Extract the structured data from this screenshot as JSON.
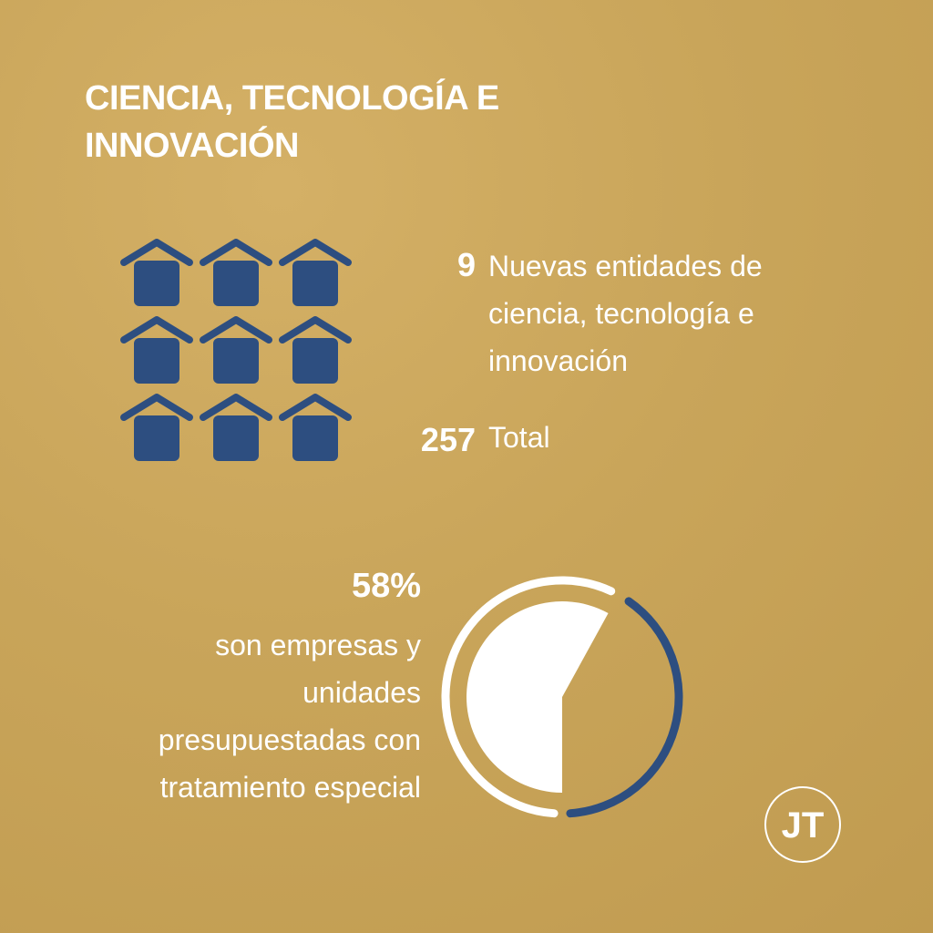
{
  "header": {
    "title": "CIENCIA, TECNOLOGÍA E INNOVACIÓN"
  },
  "entities": {
    "new_count": 9,
    "new_label": "Nuevas entidades de ciencia, tecnología e innovación",
    "total": 257,
    "total_label": "Total"
  },
  "share": {
    "value": 58,
    "value_label": "58%",
    "label": "son empresas y unidades presupuestadas con tratamiento especial"
  },
  "logo": "JT"
}
